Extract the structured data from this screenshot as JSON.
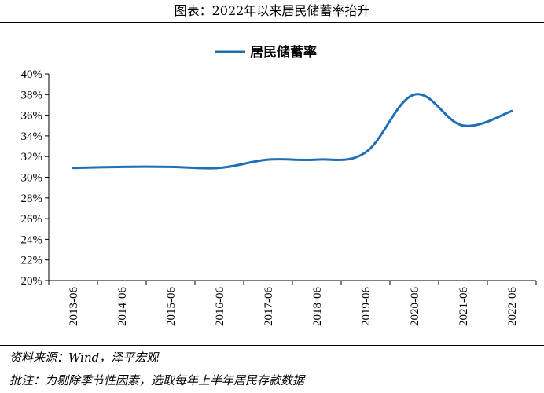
{
  "header": {
    "title": "图表：2022年以来居民储蓄率抬升"
  },
  "footer": {
    "source": "资料来源：Wind，泽平宏观",
    "note": "批注：为剔除季节性因素，选取每年上半年居民存款数据"
  },
  "chart_data": {
    "type": "line",
    "categories": [
      "2013-06",
      "2014-06",
      "2015-06",
      "2016-06",
      "2017-06",
      "2018-06",
      "2019-06",
      "2020-06",
      "2021-06",
      "2022-06"
    ],
    "series": [
      {
        "name": "居民储蓄率",
        "color": "#1f6fb6",
        "values": [
          30.9,
          31.0,
          31.0,
          30.9,
          31.7,
          31.7,
          32.4,
          38.0,
          35.0,
          36.4
        ]
      }
    ],
    "ylim": [
      20,
      40
    ],
    "yticks": [
      20,
      22,
      24,
      26,
      28,
      30,
      32,
      34,
      36,
      38,
      40
    ],
    "ytick_labels": [
      "20%",
      "22%",
      "24%",
      "26%",
      "28%",
      "30%",
      "32%",
      "34%",
      "36%",
      "38%",
      "40%"
    ],
    "legend_position": "top-center",
    "grid": false,
    "smooth": true
  }
}
